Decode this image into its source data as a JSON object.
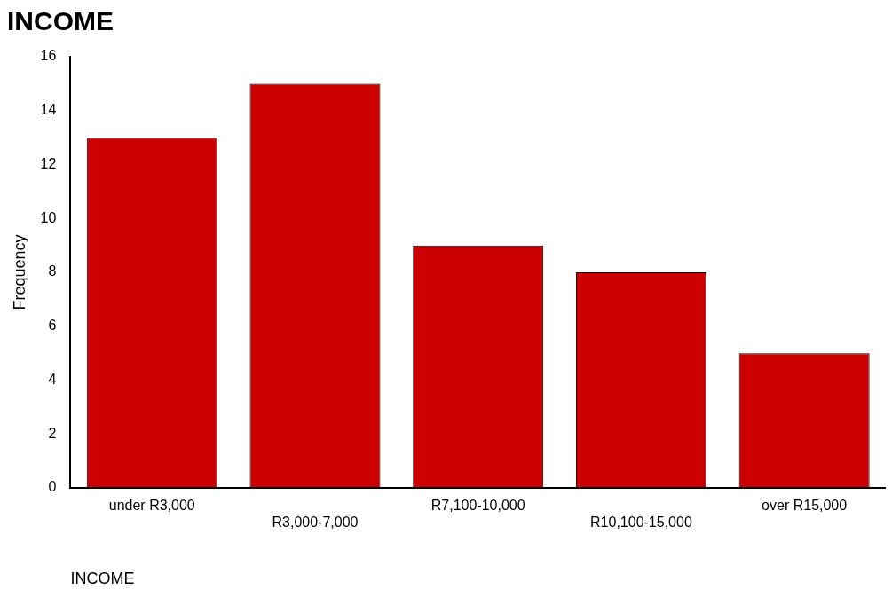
{
  "chart_data": {
    "type": "bar",
    "title": "INCOME",
    "xlabel": "INCOME",
    "ylabel": "Frequency",
    "categories": [
      "under R3,000",
      "R3,000-7,000",
      "R7,100-10,000",
      "R10,100-15,000",
      "over R15,000"
    ],
    "values": [
      13,
      15,
      9,
      8,
      5
    ],
    "color": "#cc0000",
    "ylim": [
      0,
      16
    ],
    "yticks": [
      0,
      2,
      4,
      6,
      8,
      10,
      12,
      14,
      16
    ],
    "grid": false,
    "legend": false
  }
}
